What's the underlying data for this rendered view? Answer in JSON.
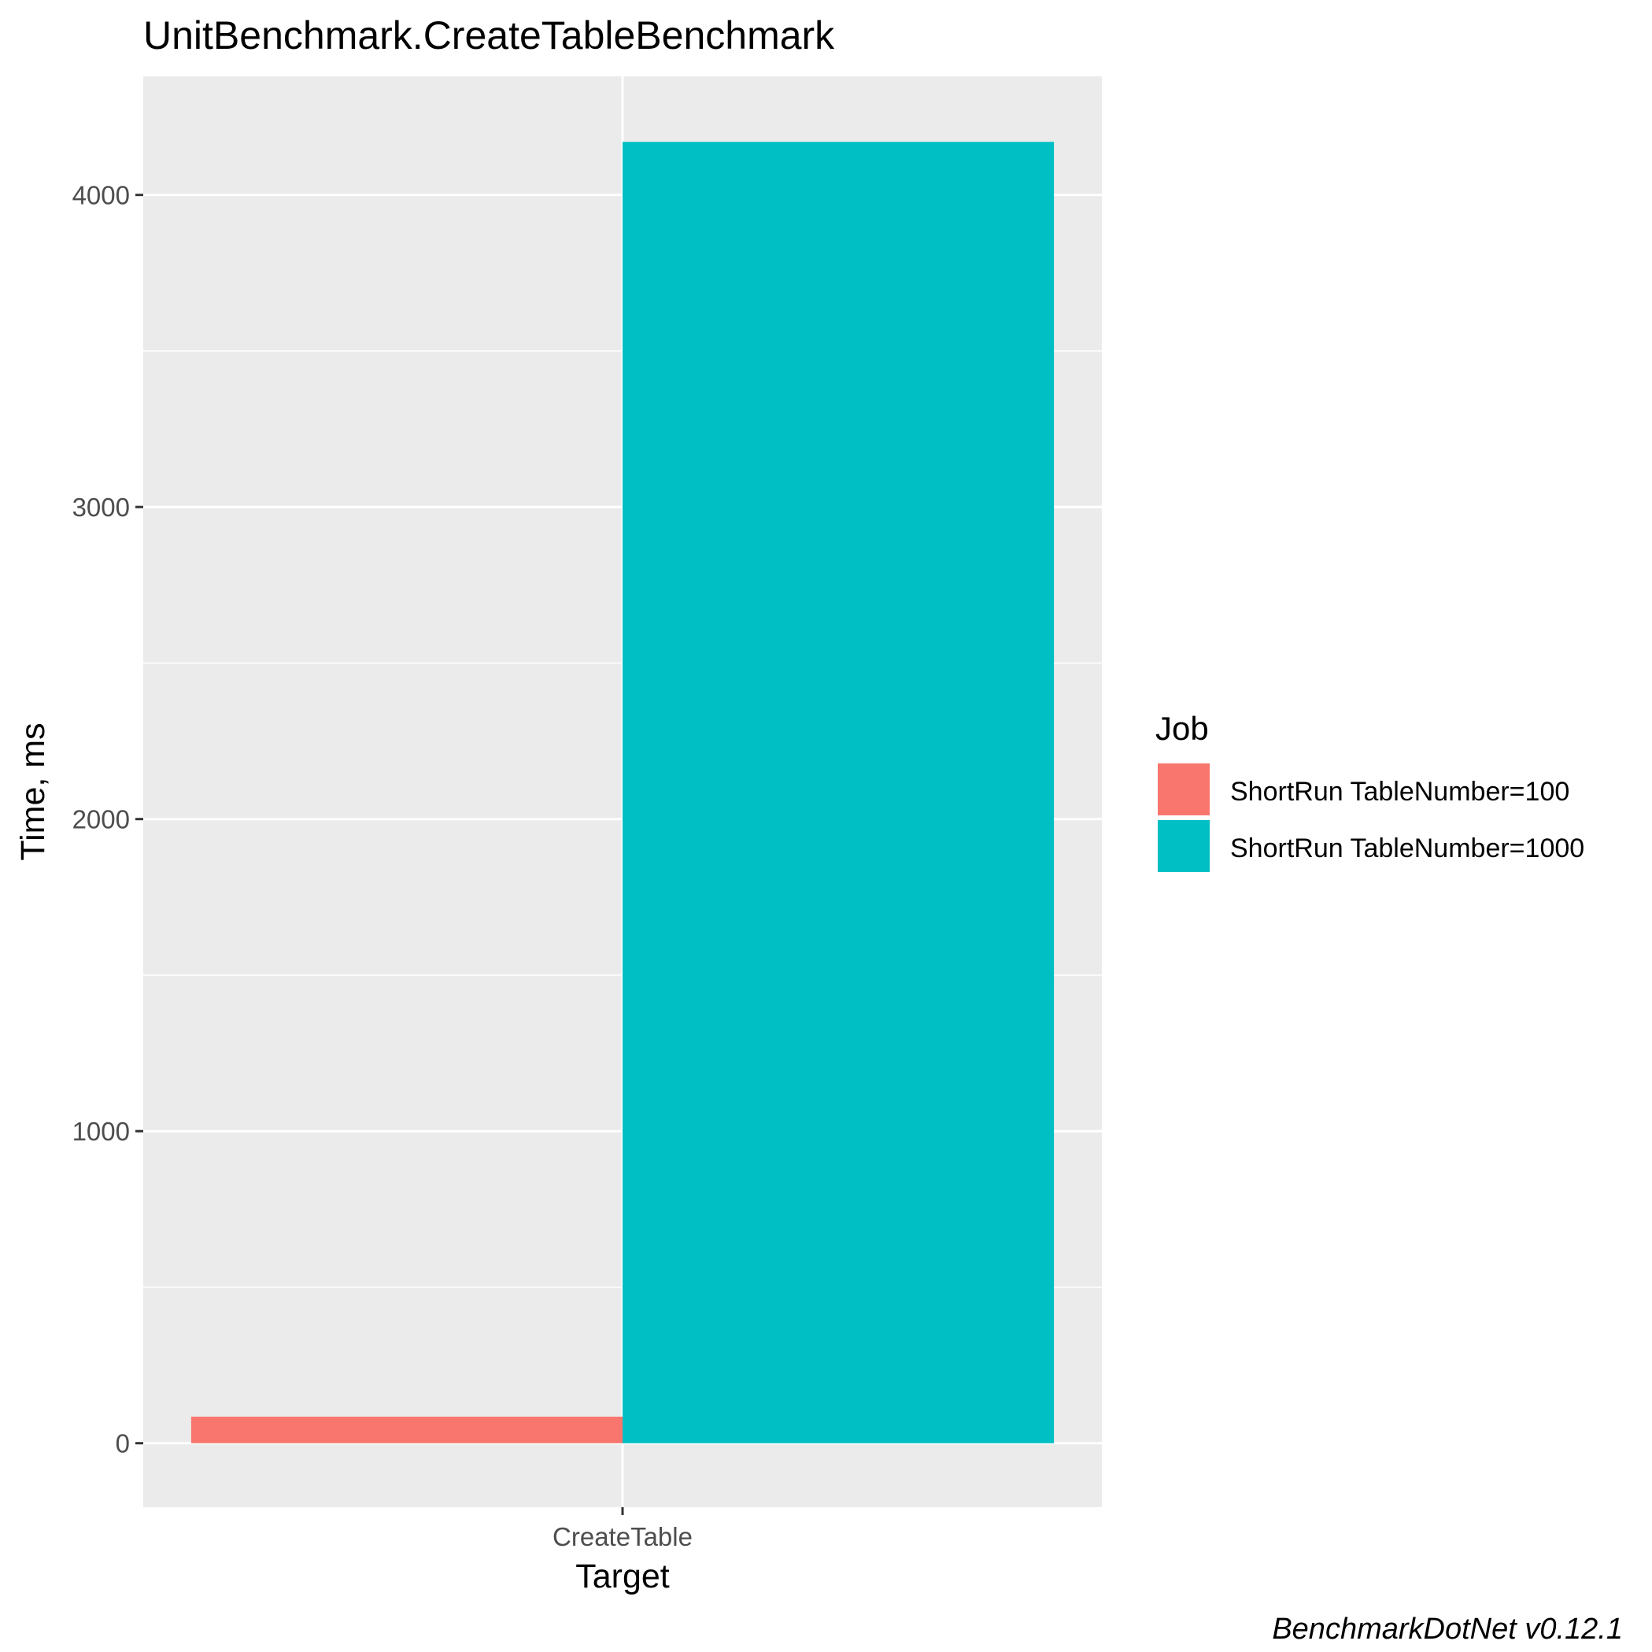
{
  "colors": {
    "panel_background": "#EBEBEB",
    "grid": "#FFFFFF",
    "series_1": "#F8766D",
    "series_2": "#00BFC4"
  },
  "caption": "BenchmarkDotNet v0.12.1",
  "chart_data": {
    "type": "bar",
    "title": "UnitBenchmark.CreateTableBenchmark",
    "xlabel": "Target",
    "ylabel": "Time, ms",
    "categories": [
      "CreateTable"
    ],
    "series": [
      {
        "name": "ShortRun TableNumber=100",
        "values": [
          85
        ],
        "color": "#F8766D"
      },
      {
        "name": "ShortRun TableNumber=1000",
        "values": [
          4170
        ],
        "color": "#00BFC4"
      }
    ],
    "ylim": [
      -205,
      4380
    ],
    "yticks": [
      0,
      1000,
      2000,
      3000,
      4000
    ],
    "ytick_labels": [
      "0",
      "1000",
      "2000",
      "3000",
      "4000"
    ],
    "grid": true,
    "legend": {
      "title": "Job",
      "position": "right"
    }
  }
}
